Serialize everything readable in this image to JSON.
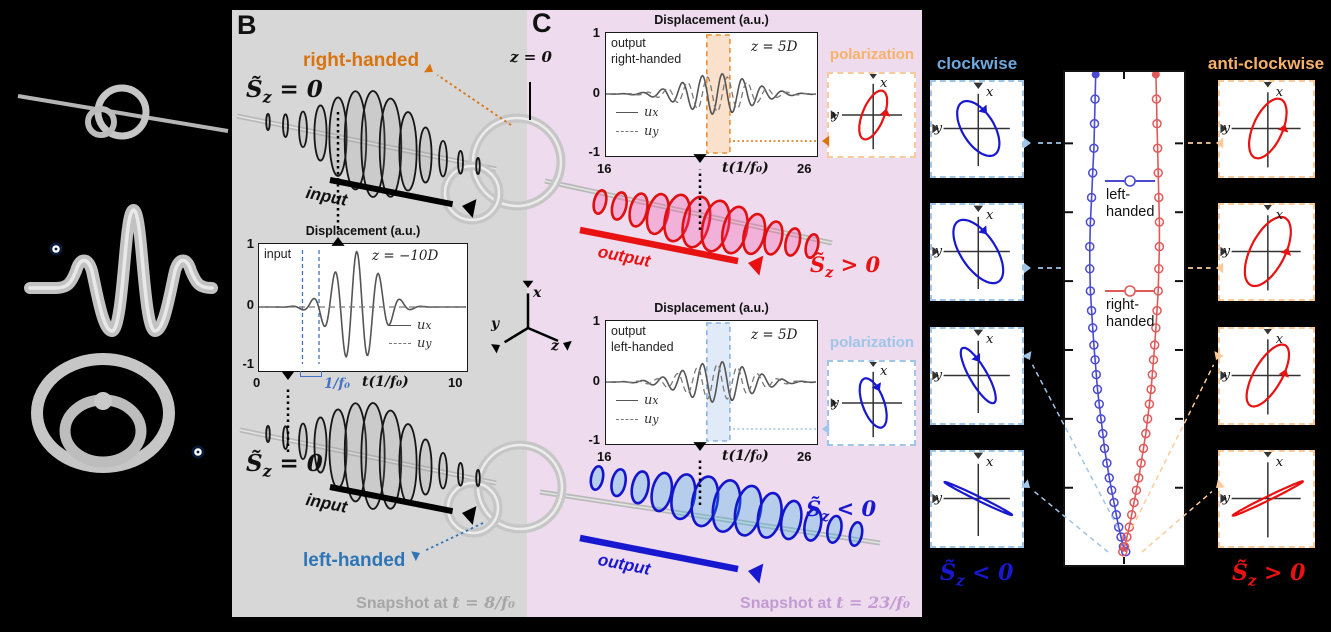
{
  "colors": {
    "panel_b_bg": "#d7d7d7",
    "panel_c_bg": "#eedbee",
    "right_handed_orange": "#d9730d",
    "left_handed_blue": "#2e75b6",
    "output_red": "#e81212",
    "output_blue": "#1818d0",
    "clockwise_blue": "#6fa8dc",
    "anticlockwise_orange": "#f6b26b",
    "pol_box_blue_border": "#9fc5e8",
    "pol_box_orange_border": "#f9cb9c",
    "traj_blue": "#4a4ad2",
    "traj_red": "#e05a5a",
    "snapshot_b_gray": "#a6a6a6",
    "snapshot_c_purple": "#c39bd3",
    "band_orange": "#f5c9a0",
    "band_orange_border": "#e69138",
    "band_blue": "#c9d9f2",
    "band_blue_border": "#8ab3e0",
    "ux_line": "#555555",
    "uy_line": "#7a7a7a",
    "period_marker_blue": "#4472c4"
  },
  "axes_labels": {
    "x": "x",
    "y": "y",
    "z": "z"
  },
  "panel_b": {
    "label": "B",
    "right_handed": "right-handed",
    "left_handed": "left-handed",
    "sz_zero_top": {
      "base": "S̃",
      "sub": "z",
      "rel": " = 0"
    },
    "sz_zero_bottom": {
      "base": "S̃",
      "sub": "z",
      "rel": " = 0"
    },
    "input_arrow_label_top": "input",
    "input_arrow_label_bottom": "input",
    "snapshot": {
      "prefix": "Snapshot at ",
      "math": "t = 8/f₀"
    }
  },
  "panel_c": {
    "label": "C",
    "z_eq_0": "z = 0",
    "output_arrow_label_top": "output",
    "output_arrow_label_bottom": "output",
    "sz_pos": {
      "base": "S̃",
      "sub": "z",
      "rel": " > 0"
    },
    "sz_neg": {
      "base": "S̃",
      "sub": "z",
      "rel": " < 0"
    },
    "polarization_label_top": "polarization",
    "polarization_label_bottom": "polarization",
    "snapshot": {
      "prefix": "Snapshot at ",
      "math": "t = 23/f₀"
    }
  },
  "right_section": {
    "clockwise": "clockwise",
    "anticlockwise": "anti-clockwise",
    "sz_neg": {
      "base": "S̃",
      "sub": "z",
      "rel": " < 0"
    },
    "sz_pos": {
      "base": "S̃",
      "sub": "z",
      "rel": " > 0"
    }
  },
  "chart_data": [
    {
      "id": "input_displacement",
      "type": "line",
      "title": "Displacement (a.u.)",
      "inplot_label": "input",
      "z_label": "z = −10D",
      "xlabel": "t(1/f₀)",
      "xlim": [
        0,
        10
      ],
      "ylim": [
        -1,
        1
      ],
      "xticks": [
        "0",
        "10"
      ],
      "yticks": [
        "1",
        "0",
        "-1"
      ],
      "legend": [
        {
          "base": "u",
          "sub": "x",
          "style": "solid"
        },
        {
          "base": "u",
          "sub": "y",
          "style": "dashed"
        }
      ],
      "period_marker": {
        "label": "1/f₀",
        "t_start": 2.1,
        "t_end": 2.9
      },
      "series": [
        {
          "name": "u_x",
          "style": "solid",
          "waveform": {
            "kind": "gaussian_packet",
            "amplitude": 1.0,
            "carrier_freq": 0.95,
            "phase_deg": 82,
            "center": 4.7,
            "sigma": 1.5
          }
        },
        {
          "name": "u_y",
          "style": "dashed",
          "waveform": {
            "kind": "constant",
            "value": 0
          }
        }
      ]
    },
    {
      "id": "output_right_displacement",
      "type": "line",
      "title": "Displacement (a.u.)",
      "inplot_label_line1": "output",
      "inplot_label_line2": "right-handed",
      "z_label": "z = 5D",
      "xlabel": "t(1/f₀)",
      "xlim": [
        16,
        26
      ],
      "ylim": [
        -1,
        1
      ],
      "xticks": [
        "16",
        "26"
      ],
      "yticks": [
        "1",
        "0",
        "-1"
      ],
      "legend": [
        {
          "base": "u",
          "sub": "x",
          "style": "solid"
        },
        {
          "base": "u",
          "sub": "y",
          "style": "dashed"
        }
      ],
      "band": {
        "t_start": 20.8,
        "t_end": 21.9,
        "fill_key": "band_orange",
        "border_key": "band_orange_border"
      },
      "series": [
        {
          "name": "u_x",
          "style": "solid",
          "waveform": {
            "kind": "gaussian_packet",
            "amplitude": 0.38,
            "carrier_freq": 1.05,
            "phase_deg": 0,
            "center": 21.3,
            "sigma": 2.2
          }
        },
        {
          "name": "u_y",
          "style": "dashed",
          "waveform": {
            "kind": "gaussian_packet",
            "amplitude": 0.33,
            "carrier_freq": 1.05,
            "phase_deg": -90,
            "center": 21.3,
            "sigma": 2.2
          }
        }
      ]
    },
    {
      "id": "output_left_displacement",
      "type": "line",
      "title": "Displacement (a.u.)",
      "inplot_label_line1": "output",
      "inplot_label_line2": "left-handed",
      "z_label": "z = 5D",
      "xlabel": "t(1/f₀)",
      "xlim": [
        16,
        26
      ],
      "ylim": [
        -1,
        1
      ],
      "xticks": [
        "16",
        "26"
      ],
      "yticks": [
        "1",
        "0",
        "-1"
      ],
      "legend": [
        {
          "base": "u",
          "sub": "x",
          "style": "solid"
        },
        {
          "base": "u",
          "sub": "y",
          "style": "dashed"
        }
      ],
      "band": {
        "t_start": 20.8,
        "t_end": 21.9,
        "fill_key": "band_blue",
        "border_key": "band_blue_border"
      },
      "series": [
        {
          "name": "u_x",
          "style": "solid",
          "waveform": {
            "kind": "gaussian_packet",
            "amplitude": 0.38,
            "carrier_freq": 1.05,
            "phase_deg": 0,
            "center": 21.3,
            "sigma": 2.2
          }
        },
        {
          "name": "u_y",
          "style": "dashed",
          "waveform": {
            "kind": "gaussian_packet",
            "amplitude": 0.33,
            "carrier_freq": 1.05,
            "phase_deg": 90,
            "center": 21.3,
            "sigma": 2.2
          }
        }
      ]
    },
    {
      "id": "mode_trajectories",
      "type": "scatter-line",
      "legend": [
        {
          "line1": "left-",
          "line2": "handed",
          "color_key": "traj_blue"
        },
        {
          "line1": "right-",
          "line2": "handed",
          "color_key": "traj_red"
        }
      ],
      "series": [
        {
          "name": "left-handed",
          "color_key": "traj_blue",
          "points": [
            [
              0.26,
              0.005
            ],
            [
              0.255,
              0.055
            ],
            [
              0.25,
              0.105
            ],
            [
              0.245,
              0.155
            ],
            [
              0.235,
              0.205
            ],
            [
              0.225,
              0.255
            ],
            [
              0.215,
              0.305
            ],
            [
              0.21,
              0.355
            ],
            [
              0.21,
              0.4
            ],
            [
              0.215,
              0.445
            ],
            [
              0.225,
              0.485
            ],
            [
              0.235,
              0.52
            ],
            [
              0.245,
              0.555
            ],
            [
              0.255,
              0.585
            ],
            [
              0.265,
              0.615
            ],
            [
              0.275,
              0.645
            ],
            [
              0.29,
              0.675
            ],
            [
              0.305,
              0.705
            ],
            [
              0.32,
              0.735
            ],
            [
              0.335,
              0.765
            ],
            [
              0.355,
              0.795
            ],
            [
              0.375,
              0.825
            ],
            [
              0.395,
              0.85
            ],
            [
              0.415,
              0.875
            ],
            [
              0.435,
              0.9
            ],
            [
              0.455,
              0.925
            ],
            [
              0.475,
              0.945
            ],
            [
              0.495,
              0.965
            ],
            [
              0.515,
              0.975
            ]
          ]
        },
        {
          "name": "right-handed",
          "color_key": "traj_red",
          "points": [
            [
              0.77,
              0.005
            ],
            [
              0.775,
              0.055
            ],
            [
              0.78,
              0.105
            ],
            [
              0.785,
              0.155
            ],
            [
              0.79,
              0.205
            ],
            [
              0.795,
              0.255
            ],
            [
              0.8,
              0.305
            ],
            [
              0.8,
              0.355
            ],
            [
              0.795,
              0.4
            ],
            [
              0.79,
              0.445
            ],
            [
              0.78,
              0.485
            ],
            [
              0.77,
              0.52
            ],
            [
              0.76,
              0.555
            ],
            [
              0.75,
              0.585
            ],
            [
              0.74,
              0.615
            ],
            [
              0.73,
              0.645
            ],
            [
              0.715,
              0.675
            ],
            [
              0.7,
              0.705
            ],
            [
              0.685,
              0.735
            ],
            [
              0.665,
              0.765
            ],
            [
              0.645,
              0.795
            ],
            [
              0.625,
              0.825
            ],
            [
              0.605,
              0.85
            ],
            [
              0.585,
              0.875
            ],
            [
              0.565,
              0.9
            ],
            [
              0.545,
              0.925
            ],
            [
              0.525,
              0.945
            ],
            [
              0.505,
              0.965
            ],
            [
              0.49,
              0.975
            ]
          ]
        }
      ]
    }
  ],
  "polarization_insets": [
    {
      "id": "pol-c-right-handed",
      "sense": "anti-clockwise",
      "color_key": "output_red",
      "tilt_deg": 22,
      "rx": 0.3,
      "ry": 0.72,
      "arrow_t_deg": -25
    },
    {
      "id": "pol-c-left-handed",
      "sense": "clockwise",
      "color_key": "output_blue",
      "tilt_deg": -20,
      "rx": 0.3,
      "ry": 0.72,
      "arrow_t_deg": -20
    },
    {
      "id": "clockwise-1",
      "sense": "clockwise",
      "color_key": "output_blue",
      "tilt_deg": -32,
      "rx": 0.4,
      "ry": 0.78,
      "arrow_t_deg": -15
    },
    {
      "id": "clockwise-2",
      "sense": "clockwise",
      "color_key": "output_blue",
      "tilt_deg": -34,
      "rx": 0.44,
      "ry": 0.92,
      "arrow_t_deg": -15
    },
    {
      "id": "clockwise-3",
      "sense": "clockwise",
      "color_key": "output_blue",
      "tilt_deg": -30,
      "rx": 0.22,
      "ry": 0.8,
      "arrow_t_deg": -20
    },
    {
      "id": "clockwise-4",
      "sense": "clockwise",
      "color_key": "output_blue",
      "tilt_deg": -64,
      "rx": 0.05,
      "ry": 0.95,
      "arrow_t_deg": 0
    },
    {
      "id": "anticlockwise-1",
      "sense": "anti-clockwise",
      "color_key": "output_red",
      "tilt_deg": 24,
      "rx": 0.36,
      "ry": 0.78,
      "arrow_t_deg": -20
    },
    {
      "id": "anticlockwise-2",
      "sense": "anti-clockwise",
      "color_key": "output_red",
      "tilt_deg": 27,
      "rx": 0.42,
      "ry": 0.92,
      "arrow_t_deg": -20
    },
    {
      "id": "anticlockwise-3",
      "sense": "anti-clockwise",
      "color_key": "output_red",
      "tilt_deg": 30,
      "rx": 0.34,
      "ry": 0.85,
      "arrow_t_deg": -25
    },
    {
      "id": "anticlockwise-4",
      "sense": "anti-clockwise",
      "color_key": "output_red",
      "tilt_deg": 64,
      "rx": 0.05,
      "ry": 0.95,
      "arrow_t_deg": 0
    }
  ]
}
